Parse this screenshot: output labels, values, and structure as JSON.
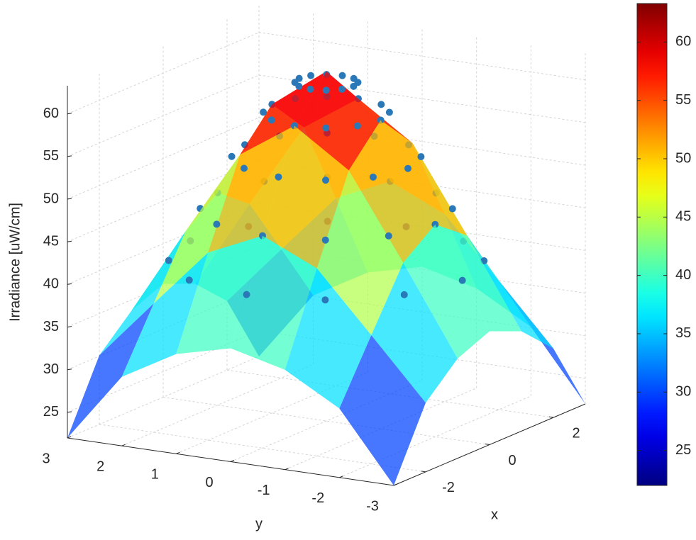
{
  "chart_data": {
    "type": "surface",
    "xlabel": "x",
    "ylabel": "y",
    "zlabel": "Irradiance [uW/cm]",
    "xlim": [
      -3,
      3
    ],
    "ylim": [
      -3,
      3
    ],
    "zlim": [
      22,
      63.3
    ],
    "xticks": [
      -2,
      0,
      2
    ],
    "yticks": [
      -3,
      -2,
      -1,
      0,
      1,
      2,
      3
    ],
    "zticks": [
      25,
      30,
      35,
      40,
      45,
      50,
      55,
      60
    ],
    "grid": true,
    "colormap": "jet",
    "clim": [
      22,
      63.3
    ],
    "cticks": [
      25,
      30,
      35,
      40,
      45,
      50,
      55,
      60
    ],
    "surface": {
      "x": [
        -3,
        -2,
        -1,
        0,
        1,
        2,
        3
      ],
      "y": [
        -3,
        -2,
        -1,
        0,
        1,
        2,
        3
      ],
      "z": [
        [
          22,
          30.1,
          33.7,
          35.3,
          33.7,
          30.1,
          22
        ],
        [
          30.1,
          37.1,
          44.0,
          46.9,
          44.0,
          37.1,
          30.1
        ],
        [
          33.7,
          44.0,
          53.9,
          58.2,
          53.9,
          44.0,
          33.7
        ],
        [
          35.3,
          46.9,
          58.2,
          63,
          58.2,
          46.9,
          35.3
        ],
        [
          33.7,
          44.0,
          53.9,
          58.2,
          53.9,
          44.0,
          33.7
        ],
        [
          30.1,
          37.1,
          44.0,
          46.9,
          44.0,
          37.1,
          30.1
        ],
        [
          22,
          30.1,
          33.7,
          35.3,
          33.7,
          30.1,
          22
        ]
      ]
    },
    "scatter": {
      "color": "#2a78b8",
      "x": [
        0.5,
        0.433,
        0.25,
        0,
        -0.25,
        -0.433,
        -0.5,
        -0.433,
        -0.25,
        0,
        0.25,
        0.433,
        1,
        0.866,
        0.5,
        0,
        -0.5,
        -0.866,
        -1,
        -0.866,
        -0.5,
        0,
        0.5,
        0.866,
        1.5,
        1.3,
        0.75,
        0,
        -0.75,
        -1.3,
        -1.5,
        -1.3,
        -0.75,
        0,
        0.75,
        1.3,
        2,
        1.732,
        1,
        0,
        -1,
        -1.732,
        -2,
        -1.732,
        -1,
        0,
        1,
        1.732,
        2.5,
        2.165,
        1.25,
        0,
        -1.25,
        -2.165,
        -2.5,
        -2.165,
        -1.25,
        0,
        1.25,
        2.165
      ],
      "y": [
        0,
        0.25,
        0.433,
        0.5,
        0.433,
        0.25,
        0,
        -0.25,
        -0.433,
        -0.5,
        -0.433,
        -0.25,
        0,
        0.5,
        0.866,
        1,
        0.866,
        0.5,
        0,
        -0.5,
        -0.866,
        -1,
        -0.866,
        -0.5,
        0,
        0.75,
        1.3,
        1.5,
        1.3,
        0.75,
        0,
        -0.75,
        -1.3,
        -1.5,
        -1.3,
        -0.75,
        0,
        1,
        1.732,
        2,
        1.732,
        1,
        0,
        -1,
        -1.732,
        -2,
        -1.732,
        -1,
        0,
        1.25,
        2.165,
        2.5,
        2.165,
        1.25,
        0,
        -1.25,
        -2.165,
        -2.5,
        -2.165,
        -1.25
      ],
      "z": [
        61.7,
        61.7,
        61.7,
        61.7,
        61.7,
        61.7,
        61.7,
        61.7,
        61.7,
        61.7,
        61.7,
        61.7,
        58.2,
        58.2,
        58.2,
        58.2,
        58.2,
        58.2,
        58.2,
        58.2,
        58.2,
        58.2,
        58.2,
        58.2,
        53.0,
        53.0,
        53.0,
        53.0,
        53.0,
        53.0,
        53.0,
        53.0,
        53.0,
        53.0,
        53.0,
        53.0,
        46.9,
        46.9,
        46.9,
        46.9,
        46.9,
        46.9,
        46.9,
        46.9,
        46.9,
        46.9,
        46.9,
        46.9,
        40.8,
        40.8,
        40.8,
        40.8,
        40.8,
        40.8,
        40.8,
        40.8,
        40.8,
        40.8,
        40.8,
        40.8
      ]
    }
  }
}
